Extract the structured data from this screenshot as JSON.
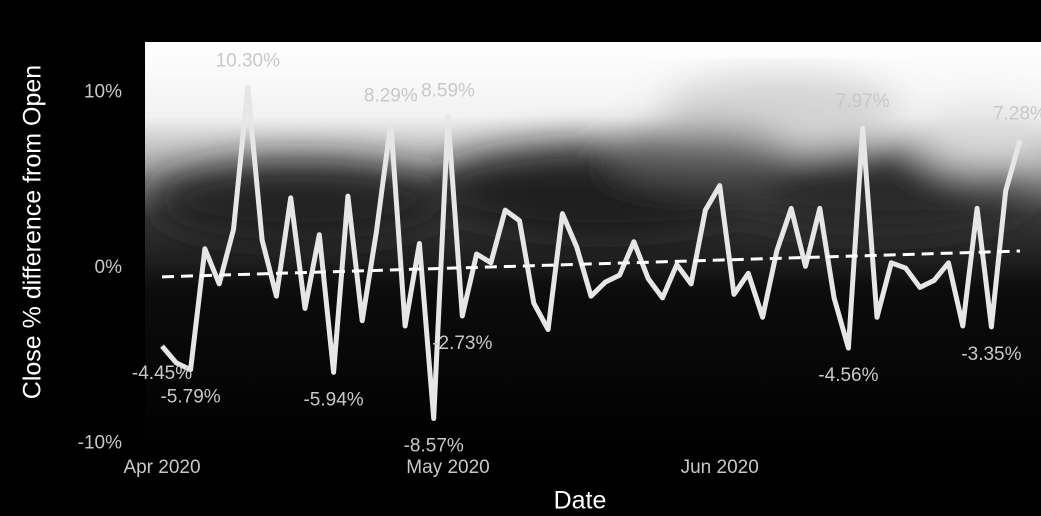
{
  "chart_data": {
    "type": "line",
    "x_label": "Date",
    "y_label": "Close % difference from Open",
    "categories": [
      "Apr 2020",
      null,
      null,
      null,
      null,
      null,
      null,
      null,
      null,
      null,
      null,
      null,
      null,
      null,
      null,
      null,
      null,
      null,
      null,
      null,
      "May 2020",
      null,
      null,
      null,
      null,
      null,
      null,
      null,
      null,
      null,
      null,
      null,
      null,
      null,
      null,
      null,
      null,
      null,
      null,
      "Jun 2020",
      null,
      null,
      null,
      null,
      null,
      null,
      null,
      null,
      null,
      null,
      null,
      null,
      null,
      null,
      null,
      null,
      null,
      null,
      null,
      null,
      null
    ],
    "series": [
      {
        "color": "#e6e6e6",
        "values": [
          -4.45,
          -5.4,
          -5.79,
          1.1,
          -0.9,
          2.2,
          10.3,
          1.6,
          -1.6,
          4.0,
          -2.3,
          1.9,
          -5.94,
          4.1,
          -3.0,
          2.1,
          8.29,
          -3.3,
          1.4,
          -8.57,
          8.59,
          -2.73,
          0.8,
          0.3,
          3.3,
          2.7,
          -2.0,
          -3.5,
          3.1,
          1.2,
          -1.6,
          -0.8,
          -0.4,
          1.5,
          -0.6,
          -1.7,
          0.2,
          -0.9,
          3.3,
          4.7,
          -1.5,
          -0.3,
          -2.8,
          1.0,
          3.4,
          0.1,
          3.4,
          -1.7,
          -4.56,
          7.97,
          -2.8,
          0.3,
          0.0,
          -1.1,
          -0.7,
          0.3,
          -3.3,
          3.4,
          -3.35,
          4.4,
          7.28
        ],
        "value_labels": [
          "-4.45%",
          null,
          "-5.79%",
          null,
          null,
          null,
          "10.30%",
          null,
          null,
          null,
          null,
          null,
          "-5.94%",
          null,
          null,
          null,
          "8.29%",
          null,
          null,
          "-8.57%",
          "8.59%",
          "-2.73%",
          null,
          null,
          null,
          null,
          null,
          null,
          null,
          null,
          null,
          null,
          null,
          null,
          null,
          null,
          null,
          null,
          null,
          null,
          null,
          null,
          null,
          null,
          null,
          null,
          null,
          null,
          "-4.56%",
          "7.97%",
          null,
          null,
          null,
          null,
          null,
          null,
          null,
          null,
          "-3.35%",
          null,
          "7.28%"
        ]
      }
    ],
    "trend_line": {
      "color": "#ffffff",
      "values": [
        -0.5,
        0.97
      ]
    },
    "ylim": [
      -10.65,
      12.88
    ],
    "yticks": [
      {
        "value": -10,
        "label": "-10%"
      },
      {
        "value": 0,
        "label": "0%"
      },
      {
        "value": 10,
        "label": "10%"
      }
    ]
  }
}
